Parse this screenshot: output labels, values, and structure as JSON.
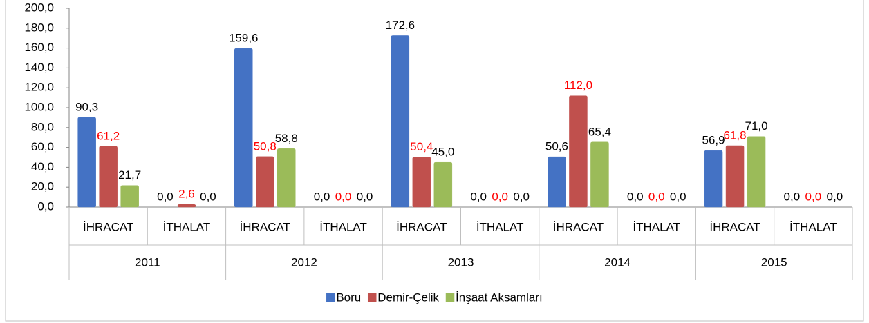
{
  "chart_data": {
    "type": "bar",
    "groups": [
      "2011",
      "2012",
      "2013",
      "2014",
      "2015"
    ],
    "categories": [
      "İHRACAT",
      "İTHALAT",
      "İHRACAT",
      "İTHALAT",
      "İHRACAT",
      "İTHALAT",
      "İHRACAT",
      "İTHALAT",
      "İHRACAT",
      "İTHALAT"
    ],
    "series": [
      {
        "name": "Boru",
        "color": "#4472c4",
        "label_color": "#000000",
        "values": [
          90.3,
          0.0,
          159.6,
          0.0,
          172.6,
          0.0,
          50.6,
          0.0,
          56.9,
          0.0
        ],
        "value_labels": [
          "90,3",
          "0,0",
          "159,6",
          "0,0",
          "172,6",
          "0,0",
          "50,6",
          "0,0",
          "56,9",
          "0,0"
        ]
      },
      {
        "name": "Demir-Çelik",
        "color": "#c0504d",
        "label_color": "#ff0000",
        "values": [
          61.2,
          2.6,
          50.8,
          0.0,
          50.4,
          0.0,
          112.0,
          0.0,
          61.8,
          0.0
        ],
        "value_labels": [
          "61,2",
          "2,6",
          "50,8",
          "0,0",
          "50,4",
          "0,0",
          "112,0",
          "0,0",
          "61,8",
          "0,0"
        ]
      },
      {
        "name": "İnşaat Aksamları",
        "color": "#9bbb59",
        "label_color": "#000000",
        "values": [
          21.7,
          0.0,
          58.8,
          0.0,
          45.0,
          0.0,
          65.4,
          0.0,
          71.0,
          0.0
        ],
        "value_labels": [
          "21,7",
          "0,0",
          "58,8",
          "0,0",
          "45,0",
          "0,0",
          "65,4",
          "0,0",
          "71,0",
          "0,0"
        ]
      }
    ],
    "ylim": [
      0,
      200
    ],
    "yticks": [
      {
        "value": 0,
        "label": "0,0"
      },
      {
        "value": 20,
        "label": "20,0"
      },
      {
        "value": 40,
        "label": "40,0"
      },
      {
        "value": 60,
        "label": "60,0"
      },
      {
        "value": 80,
        "label": "80,0"
      },
      {
        "value": 100,
        "label": "100,0"
      },
      {
        "value": 120,
        "label": "120,0"
      },
      {
        "value": 140,
        "label": "140,0"
      },
      {
        "value": 160,
        "label": "160,0"
      },
      {
        "value": 180,
        "label": "180,0"
      },
      {
        "value": 200,
        "label": "200,0"
      }
    ],
    "legend": "bottom"
  }
}
